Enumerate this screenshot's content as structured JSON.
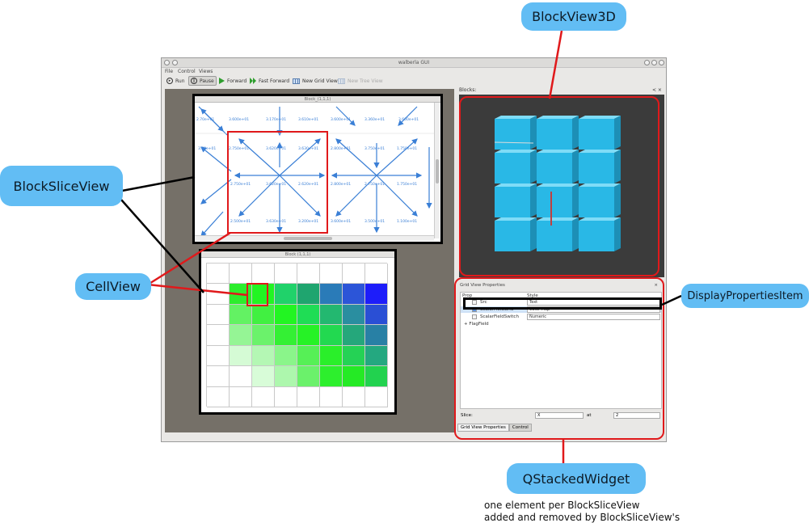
{
  "annotations": {
    "blockview3d": "BlockView3D",
    "blocksliceview": "BlockSliceView",
    "cellview": "CellView",
    "displayproperties": "DisplayPropertiesItem",
    "qstacked": "QStackedWidget",
    "note_line1": "one element per BlockSliceView",
    "note_line2": "added and removed by BlockSliceView's"
  },
  "window": {
    "title": "walberla GUI",
    "menu": [
      "File",
      "Control",
      "Views"
    ],
    "toolbar": {
      "run": "Run",
      "pause": "Pause",
      "forward": "Forward",
      "fast_forward": "Fast Forward",
      "new_grid_view": "New Grid View",
      "new_tree_view": "New Tree View"
    }
  },
  "slice_view": {
    "title": "Block_(1,1,1)",
    "row1": [
      "2.70e+01",
      "3.600e+01",
      "3.170e+01",
      "3.610e+01",
      "3.600e+01",
      "3.360e+01",
      "3.600e+01",
      "3.510e+01",
      "3.170e+01"
    ],
    "row2": [
      "3.70e+01",
      "2.750e+01",
      "3.620e+01",
      "3.630e+01",
      "2.800e+01",
      "3.750e+01",
      "1.750e+01"
    ],
    "row3": [
      "2.750e+01",
      "3.620e+01",
      "2.620e+01",
      "2.800e+01",
      "2.750e+01",
      "1.750e+01"
    ],
    "row4": [
      "2.500e+01",
      "3.630e+01",
      "3.200e+01",
      "3.600e+01",
      "3.500e+01",
      "1.100e+01"
    ]
  },
  "cell_view": {
    "title": "Block (1,1,1)"
  },
  "dock": {
    "title": "Blocks:"
  },
  "props": {
    "title": "Grid View Properties",
    "col_prop": "Prop",
    "col_style": "Style",
    "row1_label": "Src",
    "row1_value": "Text",
    "row2_label": "ScalarFieldGrid",
    "row2_value": "Color Map",
    "row3_label": "ScalarFieldSwitch",
    "row3_value": "Numeric",
    "row4_label": "+ FlagField",
    "slice_label": "Slice:",
    "slice_axis": "X",
    "at_label": "at",
    "slice_value": "2",
    "tab1": "Grid View Properties",
    "tab2": "Control"
  },
  "colors": {
    "callout": "#62bdf4",
    "highlight_red": "#e0191b",
    "cube": "#29b8e6",
    "arrow": "#3a7fd6"
  },
  "heatmap_rows": [
    [
      "#ffffff",
      "#ffffff",
      "#ffffff",
      "#ffffff",
      "#ffffff",
      "#ffffff",
      "#ffffff",
      "#ffffff"
    ],
    [
      "#ffffff",
      "#2ded2d",
      "#22f522",
      "#20d26a",
      "#1fa56f",
      "#2a7bb8",
      "#2c55d8",
      "#1d1dfa"
    ],
    [
      "#ffffff",
      "#63f263",
      "#41f041",
      "#22f522",
      "#1fdd55",
      "#23b870",
      "#2a8ea0",
      "#2a4fd5"
    ],
    [
      "#ffffff",
      "#95f595",
      "#6bf26b",
      "#34f034",
      "#26f226",
      "#22d950",
      "#25a77b",
      "#2880a5"
    ],
    [
      "#ffffff",
      "#d5fbd5",
      "#b4f7b4",
      "#8af58a",
      "#56f056",
      "#2aef2a",
      "#25d255",
      "#24a880"
    ],
    [
      "#ffffff",
      "#ffffff",
      "#d8fcd8",
      "#adf7ad",
      "#6bf16b",
      "#2def2d",
      "#25ea25",
      "#22d24f"
    ],
    [
      "#ffffff",
      "#ffffff",
      "#ffffff",
      "#ffffff",
      "#ffffff",
      "#ffffff",
      "#ffffff",
      "#ffffff"
    ]
  ]
}
